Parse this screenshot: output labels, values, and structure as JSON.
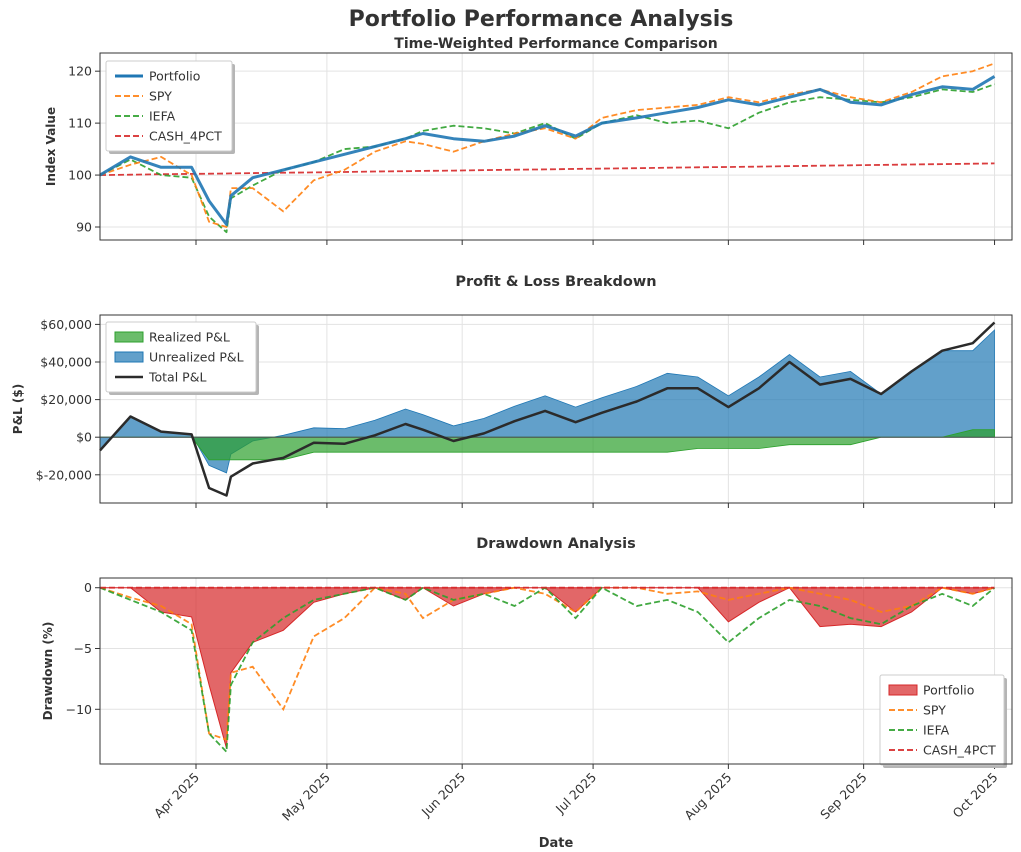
{
  "figure": {
    "title": "Portfolio Performance Analysis",
    "xlabel": "Date",
    "x_ticks": [
      "Apr 2025",
      "May 2025",
      "Jun 2025",
      "Jul 2025",
      "Aug 2025",
      "Sep 2025",
      "Oct 2025"
    ],
    "colors": {
      "Portfolio": "#1f77b4",
      "SPY": "#ff7f0e",
      "IEFA": "#2ca02c",
      "CASH_4PCT": "#d62728",
      "Realized": "#2ca02c",
      "Unrealized": "#1f77b4",
      "Total": "#2b2b2b",
      "Drawdown": "#d62728"
    }
  },
  "chart_data": [
    {
      "type": "line",
      "title": "Time-Weighted Performance Comparison",
      "ylabel": "Index Value",
      "ylim": [
        87.5,
        123.5
      ],
      "yticks": [
        90,
        100,
        110,
        120
      ],
      "grid": true,
      "legend": "top-left",
      "x": [
        "2025-03-10",
        "2025-03-17",
        "2025-03-24",
        "2025-03-31",
        "2025-04-04",
        "2025-04-08",
        "2025-04-09",
        "2025-04-14",
        "2025-04-21",
        "2025-04-28",
        "2025-05-05",
        "2025-05-12",
        "2025-05-19",
        "2025-05-23",
        "2025-05-30",
        "2025-06-06",
        "2025-06-13",
        "2025-06-20",
        "2025-06-27",
        "2025-07-03",
        "2025-07-11",
        "2025-07-18",
        "2025-07-25",
        "2025-08-01",
        "2025-08-08",
        "2025-08-15",
        "2025-08-22",
        "2025-08-29",
        "2025-09-05",
        "2025-09-12",
        "2025-09-19",
        "2025-09-26",
        "2025-10-01"
      ],
      "series": [
        {
          "name": "Portfolio",
          "values": [
            100.0,
            103.5,
            101.5,
            101.5,
            95.0,
            90.5,
            96.0,
            99.5,
            101.0,
            102.5,
            104.0,
            105.5,
            107.0,
            108.0,
            107.0,
            106.5,
            107.5,
            109.5,
            107.5,
            110.0,
            111.0,
            112.0,
            113.0,
            114.5,
            113.5,
            115.0,
            116.5,
            114.0,
            113.5,
            115.5,
            117.0,
            116.5,
            119.0
          ]
        },
        {
          "name": "SPY",
          "values": [
            100.0,
            102.0,
            103.5,
            100.0,
            91.0,
            90.0,
            97.5,
            97.5,
            93.0,
            99.0,
            101.0,
            104.5,
            106.5,
            106.0,
            104.5,
            106.5,
            108.0,
            109.0,
            107.0,
            111.0,
            112.5,
            113.0,
            113.5,
            115.0,
            114.0,
            115.5,
            116.5,
            115.0,
            114.0,
            116.0,
            119.0,
            120.0,
            121.5
          ]
        },
        {
          "name": "IEFA",
          "values": [
            100.0,
            103.0,
            100.0,
            99.5,
            92.0,
            89.0,
            95.5,
            98.0,
            101.0,
            102.5,
            105.0,
            105.5,
            107.0,
            108.5,
            109.5,
            109.0,
            108.0,
            110.0,
            107.0,
            110.0,
            111.5,
            110.0,
            110.5,
            109.0,
            112.0,
            114.0,
            115.0,
            114.5,
            114.0,
            115.0,
            116.5,
            116.0,
            117.5
          ]
        },
        {
          "name": "CASH_4PCT",
          "values": [
            100.0,
            100.08,
            100.16,
            100.23,
            100.27,
            100.31,
            100.32,
            100.37,
            100.45,
            100.52,
            100.6,
            100.68,
            100.75,
            100.8,
            100.87,
            100.95,
            101.03,
            101.1,
            101.18,
            101.24,
            101.33,
            101.41,
            101.49,
            101.56,
            101.64,
            101.72,
            101.8,
            101.88,
            101.95,
            102.03,
            102.11,
            102.19,
            102.24
          ]
        }
      ]
    },
    {
      "type": "area",
      "title": "Profit & Loss Breakdown",
      "ylabel": "P&L ($)",
      "ylim": [
        -35000,
        65000
      ],
      "yticks": [
        -20000,
        0,
        20000,
        40000,
        60000
      ],
      "ytick_labels": [
        "$-20,000",
        "$0",
        "$20,000",
        "$40,000",
        "$60,000"
      ],
      "grid": true,
      "legend": "top-left",
      "x": [
        "2025-03-10",
        "2025-03-17",
        "2025-03-24",
        "2025-03-31",
        "2025-04-04",
        "2025-04-08",
        "2025-04-09",
        "2025-04-14",
        "2025-04-21",
        "2025-04-28",
        "2025-05-05",
        "2025-05-12",
        "2025-05-19",
        "2025-05-23",
        "2025-05-30",
        "2025-06-06",
        "2025-06-13",
        "2025-06-20",
        "2025-06-27",
        "2025-07-03",
        "2025-07-11",
        "2025-07-18",
        "2025-07-25",
        "2025-08-01",
        "2025-08-08",
        "2025-08-15",
        "2025-08-22",
        "2025-08-29",
        "2025-09-05",
        "2025-09-12",
        "2025-09-19",
        "2025-09-26",
        "2025-10-01"
      ],
      "series": [
        {
          "name": "Realized P&L",
          "values": [
            0,
            0,
            0,
            0,
            -12000,
            -12000,
            -12000,
            -12000,
            -12000,
            -8000,
            -8000,
            -8000,
            -8000,
            -8000,
            -8000,
            -8000,
            -8000,
            -8000,
            -8000,
            -8000,
            -8000,
            -8000,
            -6000,
            -6000,
            -6000,
            -4000,
            -4000,
            -4000,
            0,
            0,
            0,
            4000,
            4000
          ]
        },
        {
          "name": "Unrealized P&L",
          "values": [
            -7000,
            11000,
            3000,
            1500,
            -15000,
            -19000,
            -9000,
            -2000,
            1000,
            5000,
            4500,
            9000,
            15000,
            12000,
            6000,
            10000,
            16500,
            22000,
            16000,
            21000,
            27000,
            34000,
            32000,
            22000,
            32000,
            44000,
            32000,
            35000,
            23000,
            35000,
            46000,
            46000,
            57000
          ]
        },
        {
          "name": "Total P&L",
          "values": [
            -7000,
            11000,
            3000,
            1500,
            -27000,
            -31000,
            -21000,
            -14000,
            -11000,
            -3000,
            -3500,
            1000,
            7000,
            4000,
            -2000,
            2000,
            8500,
            14000,
            8000,
            13000,
            19000,
            26000,
            26000,
            16000,
            26000,
            40000,
            28000,
            31000,
            23000,
            35000,
            46000,
            50000,
            61000
          ]
        }
      ]
    },
    {
      "type": "area",
      "title": "Drawdown Analysis",
      "ylabel": "Drawdown (%)",
      "ylim": [
        -14.5,
        0.8
      ],
      "yticks": [
        -10,
        -5,
        0
      ],
      "ytick_labels": [
        "−10",
        "−5",
        "0"
      ],
      "grid": true,
      "legend": "bottom-right",
      "x": [
        "2025-03-10",
        "2025-03-17",
        "2025-03-24",
        "2025-03-31",
        "2025-04-04",
        "2025-04-08",
        "2025-04-09",
        "2025-04-14",
        "2025-04-21",
        "2025-04-28",
        "2025-05-05",
        "2025-05-12",
        "2025-05-19",
        "2025-05-23",
        "2025-05-30",
        "2025-06-06",
        "2025-06-13",
        "2025-06-20",
        "2025-06-27",
        "2025-07-03",
        "2025-07-11",
        "2025-07-18",
        "2025-07-25",
        "2025-08-01",
        "2025-08-08",
        "2025-08-15",
        "2025-08-22",
        "2025-08-29",
        "2025-09-05",
        "2025-09-12",
        "2025-09-19",
        "2025-09-26",
        "2025-10-01"
      ],
      "series": [
        {
          "name": "Portfolio",
          "values": [
            0,
            0,
            -2.0,
            -2.4,
            -8.0,
            -13.2,
            -7.0,
            -4.5,
            -3.5,
            -1.2,
            -0.5,
            0,
            -1.0,
            0,
            -1.5,
            -0.5,
            0,
            0,
            -2.0,
            0,
            0,
            0,
            0,
            -2.8,
            -1.2,
            0,
            -3.2,
            -3.0,
            -3.2,
            -2.0,
            0,
            -0.5,
            0
          ]
        },
        {
          "name": "SPY",
          "values": [
            0,
            -0.8,
            -1.5,
            -3.0,
            -12.0,
            -12.5,
            -7.0,
            -6.5,
            -10.0,
            -4.0,
            -2.5,
            0,
            -0.5,
            -2.5,
            -1.0,
            -0.5,
            0,
            -0.5,
            -2.0,
            0,
            0,
            -0.5,
            -0.3,
            -1.0,
            -0.5,
            0,
            -0.5,
            -1.0,
            -2.0,
            -1.5,
            0,
            -0.5,
            0
          ]
        },
        {
          "name": "IEFA",
          "values": [
            0,
            -1.0,
            -2.0,
            -3.5,
            -12.0,
            -13.5,
            -8.0,
            -4.5,
            -2.5,
            -1.0,
            -0.5,
            0,
            -1.0,
            0,
            -1.0,
            -0.5,
            -1.5,
            0,
            -2.5,
            0,
            -1.5,
            -1.0,
            -2.0,
            -4.5,
            -2.5,
            -1.0,
            -1.5,
            -2.5,
            -3.0,
            -1.5,
            -0.5,
            -1.5,
            0
          ]
        },
        {
          "name": "CASH_4PCT",
          "values": [
            0,
            0,
            0,
            0,
            0,
            0,
            0,
            0,
            0,
            0,
            0,
            0,
            0,
            0,
            0,
            0,
            0,
            0,
            0,
            0,
            0,
            0,
            0,
            0,
            0,
            0,
            0,
            0,
            0,
            0,
            0,
            0,
            0
          ]
        }
      ]
    }
  ]
}
